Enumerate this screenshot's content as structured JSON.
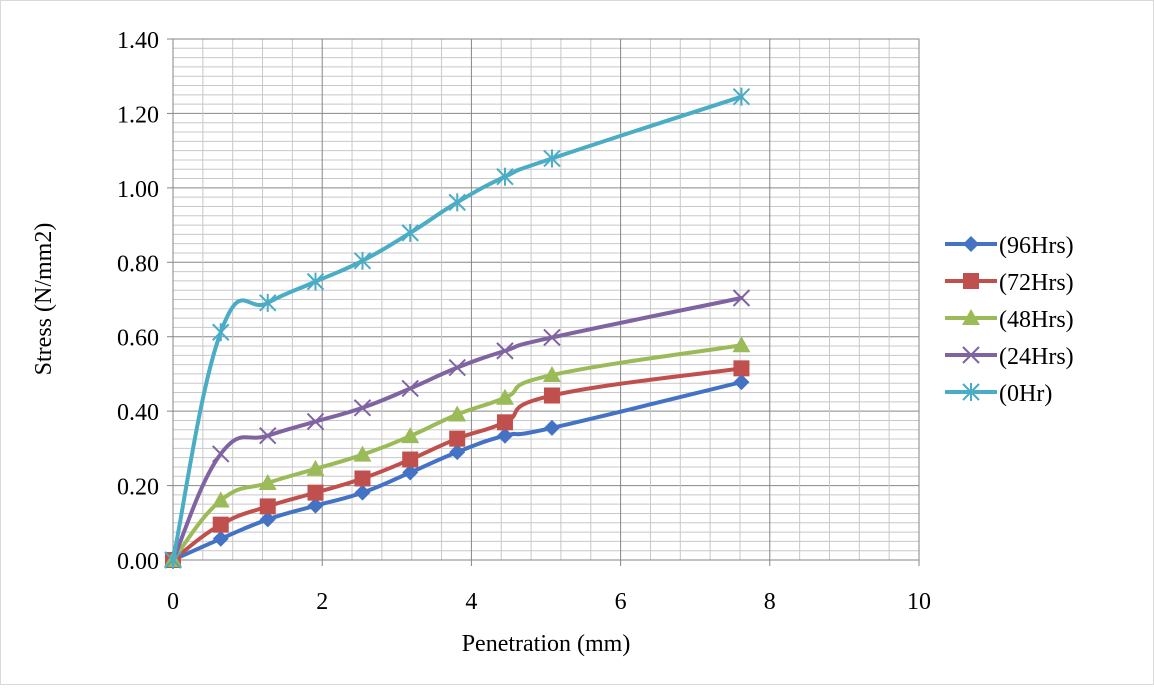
{
  "chart_data": {
    "type": "line",
    "xlabel": "Penetration (mm)",
    "ylabel": "Stress (N/mm2)",
    "xlim": [
      0,
      10
    ],
    "ylim": [
      0,
      1.4
    ],
    "x_ticks": [
      "0",
      "2",
      "4",
      "6",
      "8",
      "10"
    ],
    "y_ticks": [
      "0.00",
      "0.20",
      "0.40",
      "0.60",
      "0.80",
      "1.00",
      "1.20",
      "1.40"
    ],
    "grid": "major and minor",
    "legend_position": "right",
    "x": [
      0,
      0.64,
      1.27,
      1.91,
      2.54,
      3.18,
      3.81,
      4.45,
      5.08,
      7.62
    ],
    "series": [
      {
        "name": "(96Hrs)",
        "color": "#4472C4",
        "marker": "diamond",
        "values": [
          0.0,
          0.057,
          0.109,
          0.146,
          0.181,
          0.235,
          0.29,
          0.334,
          0.355,
          0.478
        ]
      },
      {
        "name": "(72Hrs)",
        "color": "#C0504D",
        "marker": "square",
        "values": [
          0.0,
          0.095,
          0.144,
          0.181,
          0.219,
          0.27,
          0.326,
          0.37,
          0.442,
          0.515
        ]
      },
      {
        "name": "(48Hrs)",
        "color": "#9BBB59",
        "marker": "triangle",
        "values": [
          0.0,
          0.16,
          0.207,
          0.245,
          0.283,
          0.333,
          0.391,
          0.436,
          0.497,
          0.577
        ]
      },
      {
        "name": "(24Hrs)",
        "color": "#8064A2",
        "marker": "x",
        "values": [
          0.0,
          0.285,
          0.334,
          0.372,
          0.409,
          0.461,
          0.517,
          0.562,
          0.598,
          0.704
        ]
      },
      {
        "name": "(0Hr)",
        "color": "#4BACC6",
        "marker": "asterisk",
        "values": [
          0.0,
          0.612,
          0.691,
          0.748,
          0.804,
          0.879,
          0.961,
          1.03,
          1.079,
          1.245
        ]
      }
    ]
  }
}
